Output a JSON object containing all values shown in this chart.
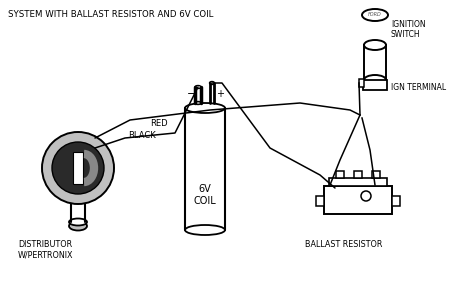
{
  "title": "SYSTEM WITH BALLAST RESISTOR AND 6V COIL",
  "bg_color": "#ffffff",
  "line_color": "#000000",
  "labels": {
    "red_wire": "RED",
    "black_wire": "BLACK",
    "distributor": "DISTRIBUTOR\nW/PERTRONIX",
    "coil_label": "6V\nCOIL",
    "coil_neg": "−",
    "coil_pos": "+",
    "ballast": "BALLAST RESISTOR",
    "ignition": "IGNITION\nSWITCH",
    "ign_terminal": "IGN TERMINAL",
    "ford_text": "FORD"
  },
  "figsize": [
    4.74,
    2.89
  ],
  "dpi": 100
}
